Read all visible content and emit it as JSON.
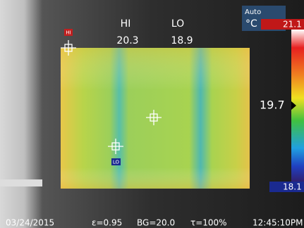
{
  "header": {
    "hi_label": "HI",
    "hi_value": "20.3",
    "lo_label": "LO",
    "lo_value": "18.9"
  },
  "mode": {
    "auto": "Auto",
    "unit": "°C"
  },
  "scale": {
    "max": "21.1",
    "min": "18.1",
    "center": "19.7"
  },
  "markers": {
    "hi": "HI",
    "lo": "LO"
  },
  "footer": {
    "date": "03/24/2015",
    "emissivity": "ε=0.95",
    "background": "BG=20.0",
    "transmission": "τ=100%",
    "time": "12:45:10PM"
  }
}
